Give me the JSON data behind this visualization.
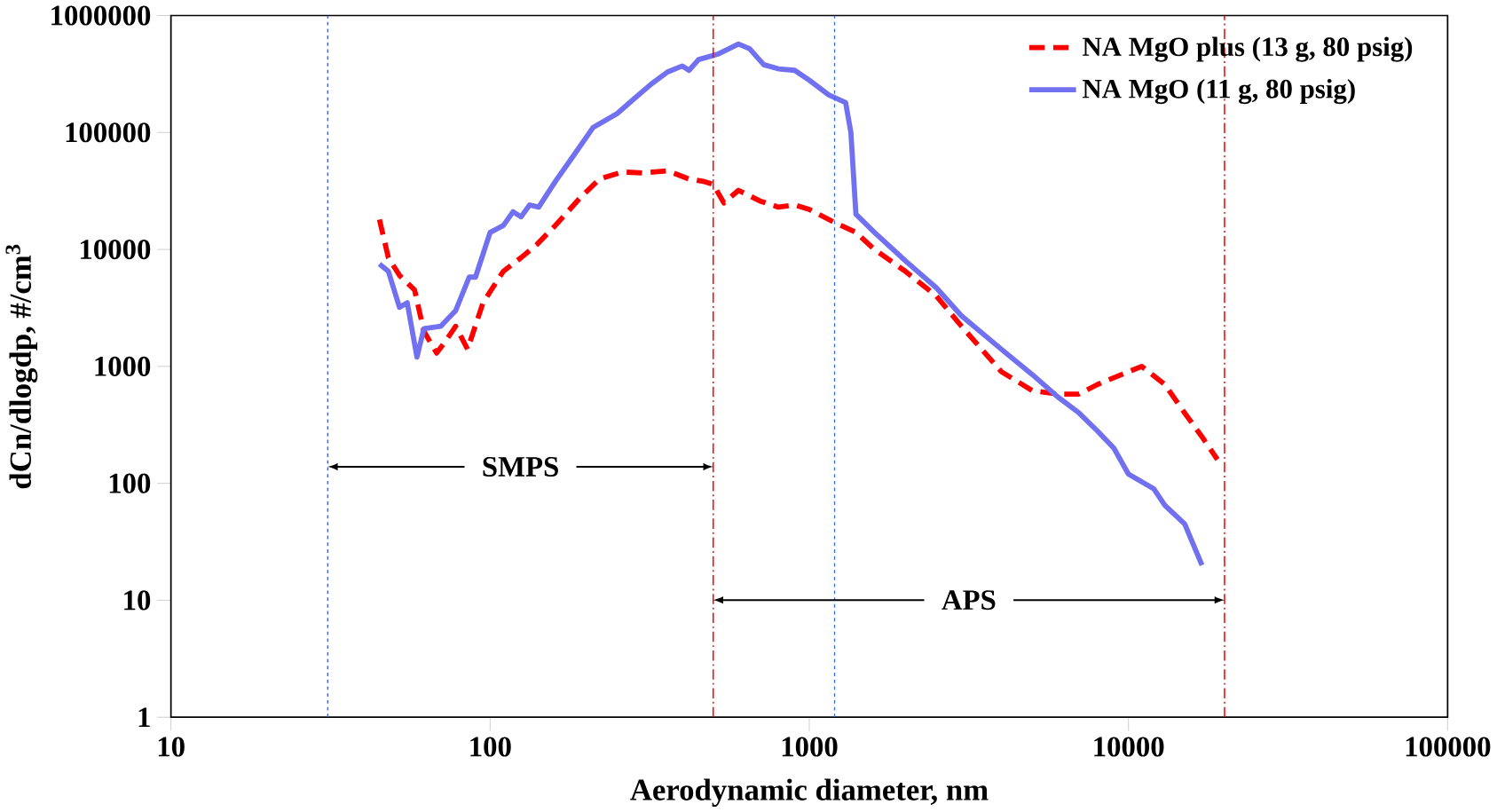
{
  "chart_data": {
    "type": "line",
    "xlabel": "Aerodynamic diameter, nm",
    "ylabel": "dCn/dlogdp, #/cm$^{3}$",
    "log": "xy",
    "xlim": [
      10,
      100000
    ],
    "ylim": [
      1,
      1000000
    ],
    "xticks": [
      10,
      100,
      1000,
      10000,
      100000
    ],
    "yticks": [
      1,
      10,
      100,
      1000,
      10000,
      100000,
      1000000
    ],
    "grid": false,
    "legend": "top right",
    "marker": "none",
    "series": [
      {
        "name": "NA MgO plus (13 g, 80 psig)",
        "color": "#ff0000",
        "line_style": "dashed",
        "x": [
          45,
          48,
          52,
          58,
          62,
          68,
          72,
          78,
          85,
          95,
          110,
          125,
          140,
          160,
          190,
          220,
          260,
          300,
          360,
          420,
          470,
          500,
          540,
          600,
          700,
          800,
          900,
          1000,
          1200,
          1400,
          1600,
          2000,
          2500,
          3000,
          4000,
          5000,
          6000,
          7000,
          8000,
          9000,
          11000,
          13000,
          15000,
          17000,
          19000
        ],
        "values": [
          18000,
          8500,
          6000,
          4500,
          2000,
          1300,
          1600,
          2200,
          1400,
          3500,
          6500,
          8500,
          11000,
          16000,
          27000,
          40000,
          46000,
          45000,
          47000,
          40000,
          38000,
          36000,
          25000,
          32000,
          26000,
          23000,
          24000,
          22000,
          17000,
          14000,
          10000,
          6500,
          4000,
          2200,
          900,
          620,
          580,
          580,
          700,
          800,
          1000,
          700,
          400,
          250,
          160
        ]
      },
      {
        "name": "NA MgO (11 g, 80 psig)",
        "color": "#7070f0",
        "line_style": "solid",
        "x": [
          45,
          48,
          52,
          55,
          59,
          62,
          70,
          78,
          86,
          90,
          100,
          110,
          118,
          125,
          133,
          142,
          160,
          180,
          210,
          250,
          280,
          320,
          360,
          400,
          420,
          450,
          520,
          600,
          650,
          720,
          800,
          900,
          1000,
          1150,
          1300,
          1350,
          1400,
          1600,
          2000,
          2500,
          3000,
          4000,
          5000,
          6000,
          7000,
          8000,
          9000,
          10000,
          12000,
          13000,
          15000,
          17000
        ],
        "values": [
          7500,
          6500,
          3200,
          3500,
          1200,
          2100,
          2200,
          3000,
          5800,
          5800,
          14000,
          16000,
          21000,
          19000,
          24000,
          23000,
          38000,
          60000,
          110000,
          145000,
          190000,
          260000,
          330000,
          370000,
          340000,
          420000,
          470000,
          570000,
          520000,
          380000,
          350000,
          340000,
          280000,
          210000,
          180000,
          100000,
          20000,
          14000,
          8000,
          4700,
          2700,
          1400,
          850,
          550,
          400,
          280,
          200,
          120,
          90,
          65,
          45,
          20
        ]
      }
    ],
    "ref_lines": [
      {
        "axis": "x",
        "value": 31,
        "color": "#3366ff",
        "line_style": "dotted"
      },
      {
        "axis": "x",
        "value": 500,
        "color": "#ff0000",
        "line_style": "dashdot"
      },
      {
        "axis": "x",
        "value": 1200,
        "color": "#3366ff",
        "line_style": "dotted"
      },
      {
        "axis": "x",
        "value": 20000,
        "color": "#ff0000",
        "line_style": "dashdot"
      }
    ],
    "annotations": [
      "SMPS",
      "APS"
    ]
  }
}
